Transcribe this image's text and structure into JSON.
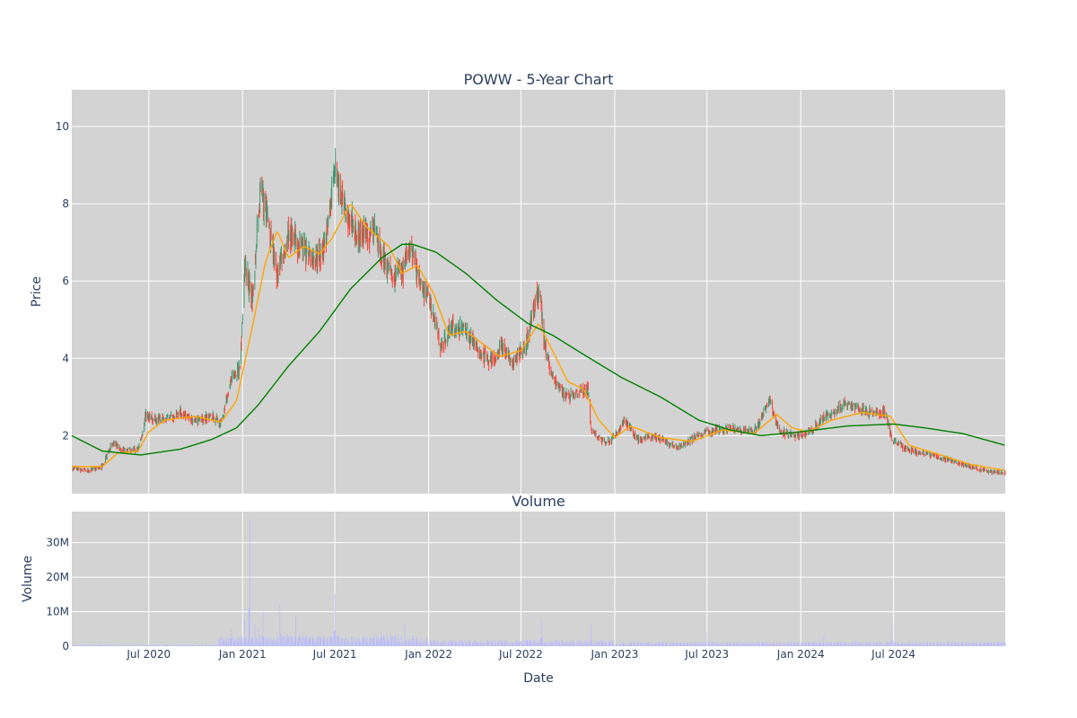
{
  "chart_data": [
    {
      "type": "candlestick",
      "title": "POWW - 5-Year Chart",
      "xlabel": "",
      "ylabel": "Price",
      "xlim": [
        "2020-02-01",
        "2025-02-05"
      ],
      "ylim": [
        0.5,
        10.95
      ],
      "yticks": [
        2,
        4,
        6,
        8,
        10
      ],
      "grid": true,
      "background": "#d3d3d3",
      "colors": {
        "increasing": "#3d9970",
        "decreasing": "#ff4136",
        "ma_short": "#ffa500",
        "ma_long": "#008000",
        "grid": "#ffffff"
      },
      "price_anchors": [
        [
          "2020-02-01",
          1.15
        ],
        [
          "2020-03-01",
          1.1
        ],
        [
          "2020-04-01",
          1.2
        ],
        [
          "2020-04-20",
          1.8
        ],
        [
          "2020-05-15",
          1.6
        ],
        [
          "2020-06-10",
          1.65
        ],
        [
          "2020-06-25",
          2.5
        ],
        [
          "2020-08-01",
          2.4
        ],
        [
          "2020-09-01",
          2.6
        ],
        [
          "2020-10-01",
          2.4
        ],
        [
          "2020-11-01",
          2.5
        ],
        [
          "2020-11-20",
          2.3
        ],
        [
          "2020-12-10",
          3.5
        ],
        [
          "2020-12-28",
          3.8
        ],
        [
          "2021-01-05",
          6.5
        ],
        [
          "2021-01-20",
          5.5
        ],
        [
          "2021-02-05",
          8.5
        ],
        [
          "2021-02-20",
          7.5
        ],
        [
          "2021-03-10",
          6.2
        ],
        [
          "2021-04-01",
          7.2
        ],
        [
          "2021-05-01",
          6.8
        ],
        [
          "2021-05-25",
          6.5
        ],
        [
          "2021-06-15",
          7.2
        ],
        [
          "2021-07-02",
          9.0
        ],
        [
          "2021-07-20",
          7.8
        ],
        [
          "2021-08-15",
          7.2
        ],
        [
          "2021-09-15",
          7.3
        ],
        [
          "2021-10-15",
          6.2
        ],
        [
          "2021-11-10",
          6.2
        ],
        [
          "2021-11-25",
          7.0
        ],
        [
          "2021-12-10",
          6.2
        ],
        [
          "2022-01-01",
          5.5
        ],
        [
          "2022-01-25",
          4.3
        ],
        [
          "2022-02-15",
          4.8
        ],
        [
          "2022-03-15",
          4.7
        ],
        [
          "2022-04-10",
          4.2
        ],
        [
          "2022-05-01",
          3.9
        ],
        [
          "2022-05-25",
          4.3
        ],
        [
          "2022-06-15",
          3.9
        ],
        [
          "2022-07-10",
          4.3
        ],
        [
          "2022-07-25",
          5.2
        ],
        [
          "2022-08-05",
          5.8
        ],
        [
          "2022-08-20",
          4.0
        ],
        [
          "2022-09-10",
          3.3
        ],
        [
          "2022-10-01",
          3.0
        ],
        [
          "2022-11-10",
          3.2
        ],
        [
          "2022-11-16",
          2.1
        ],
        [
          "2022-12-15",
          1.8
        ],
        [
          "2023-01-01",
          2.0
        ],
        [
          "2023-01-20",
          2.4
        ],
        [
          "2023-02-15",
          1.9
        ],
        [
          "2023-03-20",
          2.0
        ],
        [
          "2023-05-01",
          1.7
        ],
        [
          "2023-07-01",
          2.1
        ],
        [
          "2023-08-15",
          2.2
        ],
        [
          "2023-10-01",
          2.1
        ],
        [
          "2023-11-01",
          2.9
        ],
        [
          "2023-11-20",
          2.1
        ],
        [
          "2023-12-20",
          2.0
        ],
        [
          "2024-01-20",
          2.1
        ],
        [
          "2024-02-20",
          2.5
        ],
        [
          "2024-04-01",
          2.8
        ],
        [
          "2024-05-15",
          2.6
        ],
        [
          "2024-06-15",
          2.6
        ],
        [
          "2024-06-28",
          1.9
        ],
        [
          "2024-08-01",
          1.6
        ],
        [
          "2024-09-15",
          1.5
        ],
        [
          "2024-11-01",
          1.3
        ],
        [
          "2024-12-01",
          1.2
        ],
        [
          "2025-01-10",
          1.05
        ],
        [
          "2025-02-05",
          1.05
        ]
      ],
      "ma_short_anchors": [
        [
          "2020-02-01",
          1.2
        ],
        [
          "2020-04-01",
          1.2
        ],
        [
          "2020-05-01",
          1.55
        ],
        [
          "2020-06-10",
          1.6
        ],
        [
          "2020-07-01",
          2.1
        ],
        [
          "2020-08-01",
          2.4
        ],
        [
          "2020-10-01",
          2.5
        ],
        [
          "2020-11-20",
          2.35
        ],
        [
          "2020-12-20",
          2.9
        ],
        [
          "2021-01-20",
          4.8
        ],
        [
          "2021-02-15",
          6.5
        ],
        [
          "2021-03-10",
          7.3
        ],
        [
          "2021-04-01",
          6.6
        ],
        [
          "2021-05-01",
          6.9
        ],
        [
          "2021-06-01",
          6.7
        ],
        [
          "2021-06-25",
          7.1
        ],
        [
          "2021-08-01",
          8.0
        ],
        [
          "2021-09-01",
          7.4
        ],
        [
          "2021-10-15",
          6.9
        ],
        [
          "2021-11-10",
          6.2
        ],
        [
          "2021-12-10",
          6.4
        ],
        [
          "2022-01-10",
          5.7
        ],
        [
          "2022-02-10",
          4.6
        ],
        [
          "2022-03-15",
          4.7
        ],
        [
          "2022-04-15",
          4.4
        ],
        [
          "2022-05-20",
          4.05
        ],
        [
          "2022-07-01",
          4.2
        ],
        [
          "2022-08-05",
          4.9
        ],
        [
          "2022-09-01",
          4.2
        ],
        [
          "2022-10-01",
          3.4
        ],
        [
          "2022-11-01",
          3.2
        ],
        [
          "2022-12-01",
          2.4
        ],
        [
          "2023-01-01",
          1.95
        ],
        [
          "2023-02-01",
          2.25
        ],
        [
          "2023-04-01",
          1.95
        ],
        [
          "2023-06-01",
          1.85
        ],
        [
          "2023-08-01",
          2.15
        ],
        [
          "2023-10-01",
          2.05
        ],
        [
          "2023-11-15",
          2.55
        ],
        [
          "2023-12-15",
          2.2
        ],
        [
          "2024-01-15",
          2.1
        ],
        [
          "2024-03-01",
          2.4
        ],
        [
          "2024-05-01",
          2.6
        ],
        [
          "2024-06-25",
          2.5
        ],
        [
          "2024-08-01",
          1.75
        ],
        [
          "2024-10-01",
          1.5
        ],
        [
          "2024-12-01",
          1.25
        ],
        [
          "2025-02-05",
          1.1
        ]
      ],
      "ma_long_anchors": [
        [
          "2020-02-01",
          2.0
        ],
        [
          "2020-04-01",
          1.6
        ],
        [
          "2020-06-15",
          1.5
        ],
        [
          "2020-09-01",
          1.65
        ],
        [
          "2020-11-01",
          1.9
        ],
        [
          "2020-12-20",
          2.2
        ],
        [
          "2021-02-01",
          2.8
        ],
        [
          "2021-04-01",
          3.8
        ],
        [
          "2021-06-01",
          4.7
        ],
        [
          "2021-08-01",
          5.8
        ],
        [
          "2021-10-01",
          6.6
        ],
        [
          "2021-11-10",
          6.95
        ],
        [
          "2021-12-01",
          6.95
        ],
        [
          "2022-01-15",
          6.75
        ],
        [
          "2022-03-15",
          6.2
        ],
        [
          "2022-05-15",
          5.5
        ],
        [
          "2022-07-15",
          4.9
        ],
        [
          "2022-09-01",
          4.6
        ],
        [
          "2022-11-01",
          4.1
        ],
        [
          "2023-01-15",
          3.5
        ],
        [
          "2023-04-01",
          3.0
        ],
        [
          "2023-06-15",
          2.4
        ],
        [
          "2023-08-15",
          2.15
        ],
        [
          "2023-10-15",
          2.0
        ],
        [
          "2024-01-01",
          2.1
        ],
        [
          "2024-04-01",
          2.25
        ],
        [
          "2024-07-01",
          2.3
        ],
        [
          "2024-09-01",
          2.2
        ],
        [
          "2024-11-15",
          2.05
        ],
        [
          "2025-02-05",
          1.75
        ]
      ]
    },
    {
      "type": "bar",
      "title": "Volume",
      "xlabel": "Date",
      "ylabel": "Volume",
      "xlim": [
        "2020-02-01",
        "2025-02-05"
      ],
      "ylim": [
        0,
        39000000
      ],
      "yticks": [
        0,
        10000000,
        20000000,
        30000000
      ],
      "ytick_labels": [
        "0",
        "10M",
        "20M",
        "30M"
      ],
      "xticks": [
        "2020-07-01",
        "2021-01-01",
        "2021-07-01",
        "2022-01-01",
        "2022-07-01",
        "2023-01-01",
        "2023-07-01",
        "2024-01-01",
        "2024-07-01"
      ],
      "xtick_labels": [
        "Jul 2020",
        "Jan 2021",
        "Jul 2021",
        "Jan 2022",
        "Jul 2022",
        "Jan 2023",
        "Jul 2023",
        "Jan 2024",
        "Jul 2024"
      ],
      "grid": true,
      "background": "#d3d3d3",
      "bar_color": "#b8b8ff",
      "volume_spikes": [
        [
          "2020-12-10",
          5000000
        ],
        [
          "2021-01-05",
          8000000
        ],
        [
          "2021-01-15",
          37000000
        ],
        [
          "2021-01-25",
          6500000
        ],
        [
          "2021-02-01",
          5000000
        ],
        [
          "2021-02-10",
          10000000
        ],
        [
          "2021-03-15",
          12000000
        ],
        [
          "2021-04-15",
          9000000
        ],
        [
          "2021-07-01",
          15000000
        ],
        [
          "2021-11-15",
          6500000
        ],
        [
          "2021-12-05",
          5500000
        ],
        [
          "2022-08-10",
          8000000
        ],
        [
          "2022-11-15",
          6500000
        ],
        [
          "2023-06-30",
          4000000
        ],
        [
          "2024-02-15",
          3000000
        ],
        [
          "2024-06-28",
          6500000
        ]
      ]
    }
  ]
}
